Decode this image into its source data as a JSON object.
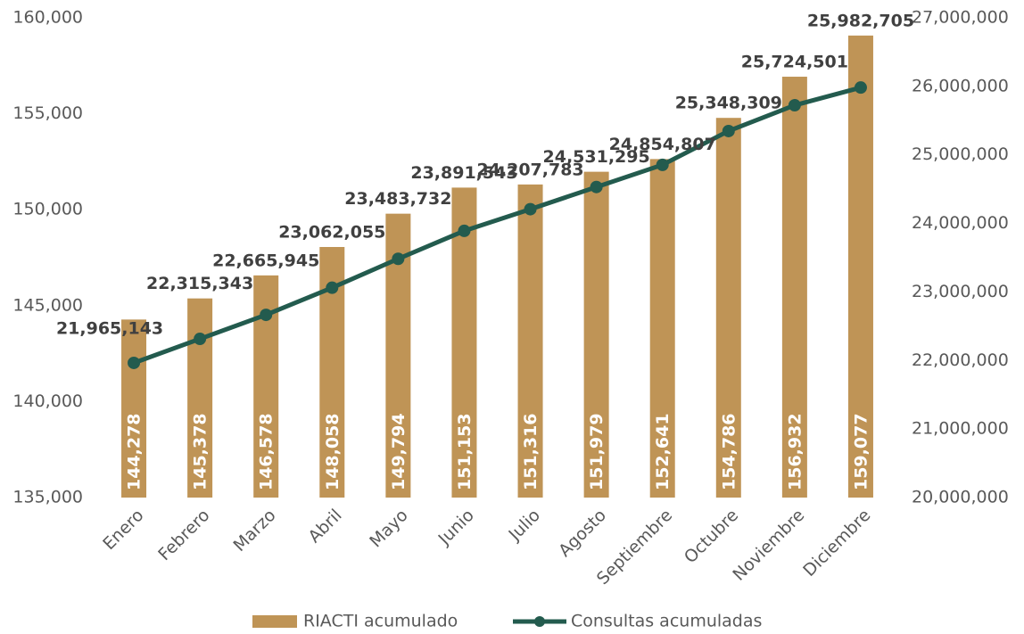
{
  "chart_data": {
    "type": "bar_line",
    "categories": [
      "Enero",
      "Febrero",
      "Marzo",
      "Abril",
      "Mayo",
      "Junio",
      "Julio",
      "Agosto",
      "Septiembre",
      "Octubre",
      "Noviembre",
      "Diciembre"
    ],
    "series": [
      {
        "name": "RIACTI acumulado",
        "type": "bar",
        "color": "#bf9456",
        "values": [
          144278,
          145378,
          146578,
          148058,
          149794,
          151153,
          151316,
          151979,
          152641,
          154786,
          156932,
          159077
        ],
        "value_labels": [
          "144,278",
          "145,378",
          "146,578",
          "148,058",
          "149,794",
          "151,153",
          "151,316",
          "151,979",
          "152,641",
          "154,786",
          "156,932",
          "159,077"
        ]
      },
      {
        "name": "Consultas acumuladas",
        "type": "line",
        "axis": "y2",
        "color": "#235b4e",
        "values": [
          21965143,
          22315343,
          22665945,
          23062055,
          23483732,
          23891543,
          24207783,
          24531295,
          24854807,
          25348309,
          25724501,
          25982705
        ],
        "value_labels": [
          "21,965,143",
          "22,315,343",
          "22,665,945",
          "23,062,055",
          "23,483,732",
          "23,891,543",
          "24,207,783",
          "24,531,295",
          "24,854,807",
          "25,348,309",
          "25,724,501",
          "25,982,705"
        ]
      }
    ],
    "ylim": [
      135000,
      160000
    ],
    "yticks": [
      {
        "value": 135000,
        "label": "135,000"
      },
      {
        "value": 140000,
        "label": "140,000"
      },
      {
        "value": 145000,
        "label": "145,000"
      },
      {
        "value": 150000,
        "label": "150,000"
      },
      {
        "value": 155000,
        "label": "155,000"
      },
      {
        "value": 160000,
        "label": "160,000"
      }
    ],
    "y2lim": [
      20000000,
      27000000
    ],
    "y2ticks": [
      {
        "value": 20000000,
        "label": "20,000,000"
      },
      {
        "value": 21000000,
        "label": "21,000,000"
      },
      {
        "value": 22000000,
        "label": "22,000,000"
      },
      {
        "value": 23000000,
        "label": "23,000,000"
      },
      {
        "value": 24000000,
        "label": "24,000,000"
      },
      {
        "value": 25000000,
        "label": "25,000,000"
      },
      {
        "value": 26000000,
        "label": "26,000,000"
      },
      {
        "value": 27000000,
        "label": "27,000,000"
      }
    ],
    "legend": "bottom",
    "grid": false
  }
}
